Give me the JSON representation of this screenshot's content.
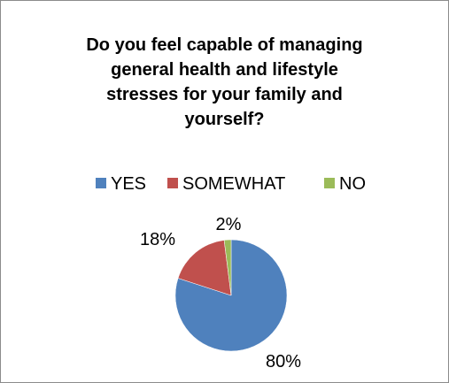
{
  "chart_data": {
    "type": "pie",
    "title": "Do you feel capable of managing general health and lifestyle stresses for your family and yourself?",
    "title_lines": [
      "Do you feel capable of managing",
      "general health and lifestyle",
      "stresses for your family and",
      "yourself?"
    ],
    "categories": [
      "YES",
      "SOMEWHAT",
      "NO"
    ],
    "values": [
      80,
      18,
      2
    ],
    "data_labels": [
      "80%",
      "18%",
      "2%"
    ],
    "colors": [
      "#4f81bd",
      "#c0504d",
      "#9bbb59"
    ],
    "legend_position": "top",
    "start_angle_deg": 0,
    "direction": "clockwise"
  }
}
